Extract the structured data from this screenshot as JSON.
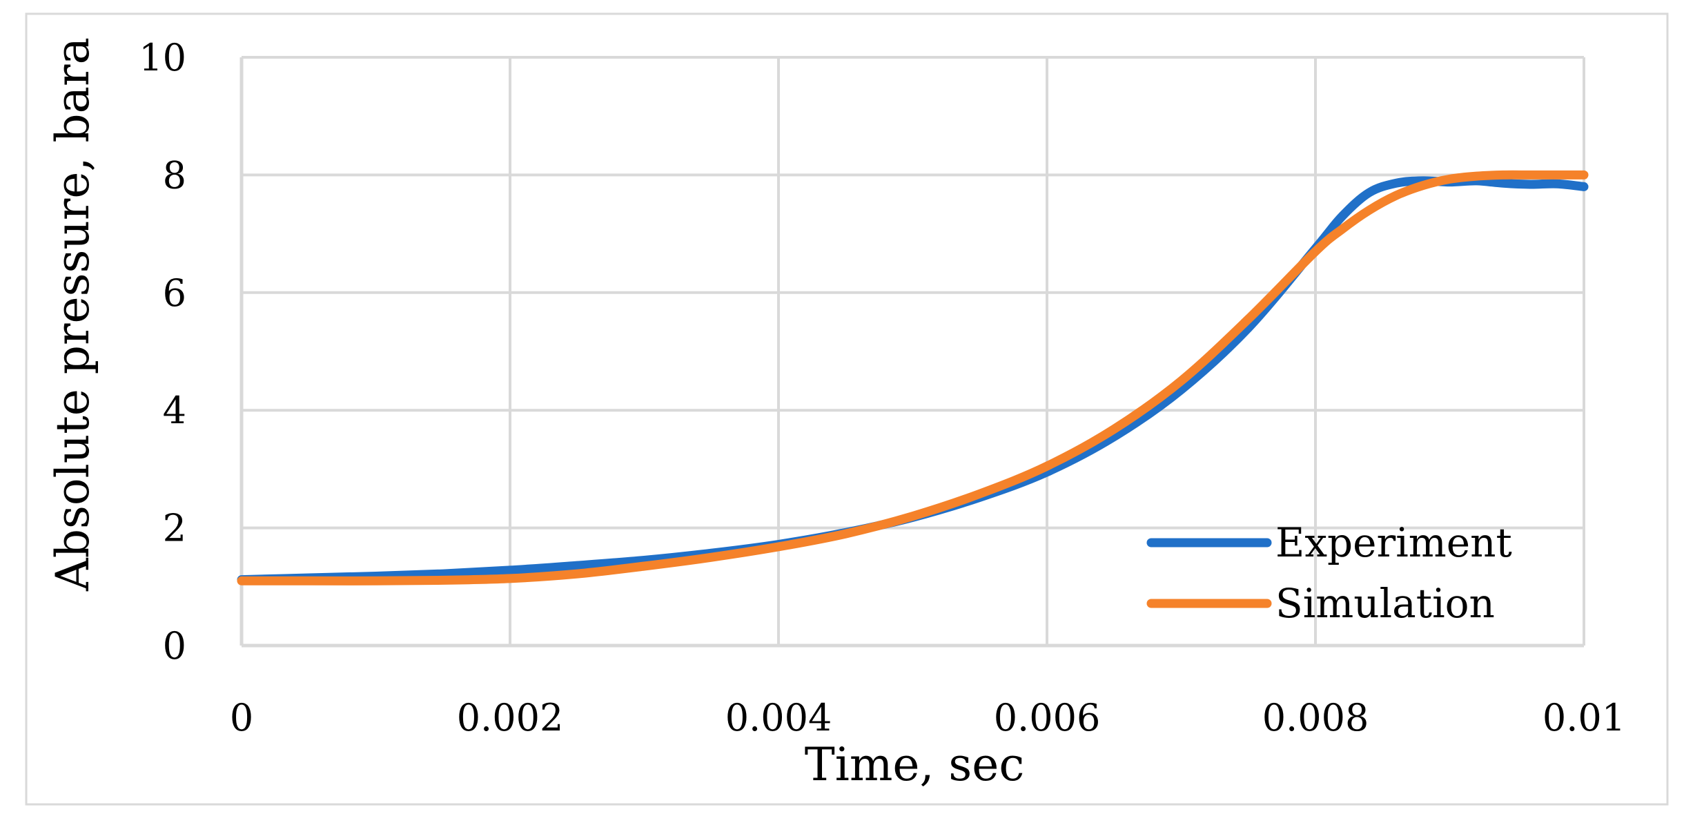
{
  "colors": {
    "experiment": "#2070c8",
    "simulation": "#f5822a",
    "grid": "#d9d9d9",
    "frame": "#d9d9d9"
  },
  "chart_data": {
    "type": "line",
    "title": "",
    "xlabel": "Time, sec",
    "ylabel": "Absolute pressure, bara",
    "xlim": [
      0,
      0.01
    ],
    "ylim": [
      0,
      10
    ],
    "x_ticks": [
      "0",
      "0.002",
      "0.004",
      "0.006",
      "0.008",
      "0.01"
    ],
    "y_ticks": [
      "0",
      "2",
      "4",
      "6",
      "8",
      "10"
    ],
    "grid": true,
    "legend_position": "bottom-right",
    "series": [
      {
        "name": "Experiment",
        "color_key": "experiment",
        "x": [
          0,
          0.0005,
          0.001,
          0.0015,
          0.002,
          0.0025,
          0.003,
          0.0035,
          0.004,
          0.0045,
          0.005,
          0.0055,
          0.006,
          0.0065,
          0.007,
          0.0075,
          0.008,
          0.0082,
          0.0084,
          0.0086,
          0.0088,
          0.009,
          0.0092,
          0.0094,
          0.0096,
          0.0098,
          0.01
        ],
        "y": [
          1.12,
          1.15,
          1.18,
          1.22,
          1.28,
          1.36,
          1.45,
          1.57,
          1.72,
          1.92,
          2.18,
          2.52,
          2.95,
          3.55,
          4.35,
          5.4,
          6.75,
          7.3,
          7.7,
          7.86,
          7.9,
          7.88,
          7.9,
          7.86,
          7.84,
          7.85,
          7.8
        ]
      },
      {
        "name": "Simulation",
        "color_key": "simulation",
        "x": [
          0,
          0.0005,
          0.001,
          0.0015,
          0.002,
          0.0025,
          0.003,
          0.0035,
          0.004,
          0.0045,
          0.005,
          0.0055,
          0.006,
          0.0065,
          0.007,
          0.0075,
          0.008,
          0.0082,
          0.0084,
          0.0086,
          0.0088,
          0.009,
          0.0092,
          0.0094,
          0.0096,
          0.0098,
          0.01
        ],
        "y": [
          1.1,
          1.1,
          1.1,
          1.11,
          1.14,
          1.22,
          1.35,
          1.5,
          1.68,
          1.9,
          2.2,
          2.58,
          3.05,
          3.68,
          4.5,
          5.55,
          6.7,
          7.08,
          7.4,
          7.65,
          7.82,
          7.93,
          7.98,
          8.0,
          8.0,
          8.0,
          8.0
        ]
      }
    ]
  }
}
